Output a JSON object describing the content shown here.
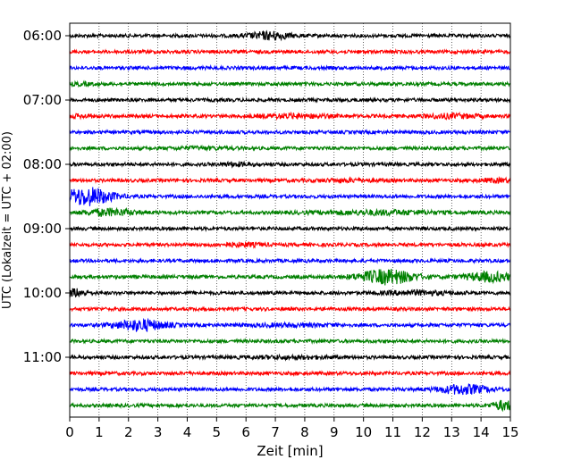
{
  "chart_data": {
    "type": "line",
    "title": "",
    "xlabel": "Zeit  [min]",
    "ylabel": "UTC (Lokalzeit = UTC + 02:00)",
    "xlim": [
      0,
      15
    ],
    "x_ticks": [
      "0",
      "1",
      "2",
      "3",
      "4",
      "5",
      "6",
      "7",
      "8",
      "9",
      "10",
      "11",
      "12",
      "13",
      "14",
      "15"
    ],
    "y_tick_labels": [
      "06:00",
      "07:00",
      "08:00",
      "09:00",
      "10:00",
      "11:00"
    ],
    "grid": "vertical dotted",
    "start_time": "06:00",
    "trace_interval_minutes": 15,
    "color_cycle": [
      "#000000",
      "#ff0000",
      "#0000ff",
      "#008000"
    ],
    "series": [
      {
        "start": "06:00",
        "bursts": [
          [
            6.8,
            0.5,
            3.0
          ]
        ]
      },
      {
        "start": "06:15",
        "bursts": []
      },
      {
        "start": "06:30",
        "bursts": []
      },
      {
        "start": "06:45",
        "bursts": [
          [
            0.4,
            0.3,
            1.5
          ]
        ]
      },
      {
        "start": "07:00",
        "bursts": []
      },
      {
        "start": "07:15",
        "bursts": [
          [
            0.3,
            0.4,
            1.6
          ],
          [
            7.6,
            0.8,
            2.0
          ],
          [
            13.0,
            0.7,
            2.0
          ]
        ]
      },
      {
        "start": "07:30",
        "bursts": []
      },
      {
        "start": "07:45",
        "bursts": [
          [
            4.5,
            0.7,
            1.5
          ]
        ]
      },
      {
        "start": "08:00",
        "bursts": [
          [
            5.6,
            0.4,
            1.8
          ]
        ]
      },
      {
        "start": "08:15",
        "bursts": [
          [
            9.5,
            0.8,
            1.6
          ],
          [
            14.6,
            0.5,
            1.8
          ]
        ]
      },
      {
        "start": "08:30",
        "bursts": [
          [
            0.6,
            0.6,
            6.0
          ]
        ]
      },
      {
        "start": "08:45",
        "bursts": [
          [
            1.4,
            0.6,
            2.8
          ],
          [
            10.5,
            1.5,
            2.0
          ]
        ]
      },
      {
        "start": "09:00",
        "bursts": []
      },
      {
        "start": "09:15",
        "bursts": [
          [
            5.8,
            0.6,
            1.8
          ]
        ]
      },
      {
        "start": "09:30",
        "bursts": []
      },
      {
        "start": "09:45",
        "bursts": [
          [
            10.8,
            0.7,
            5.0
          ],
          [
            14.3,
            0.6,
            3.5
          ]
        ]
      },
      {
        "start": "10:00",
        "bursts": [
          [
            0.2,
            0.3,
            3.0
          ],
          [
            11.8,
            0.8,
            2.0
          ]
        ]
      },
      {
        "start": "10:15",
        "bursts": []
      },
      {
        "start": "10:30",
        "bursts": [
          [
            2.4,
            0.6,
            4.0
          ],
          [
            7.5,
            1.0,
            1.6
          ]
        ]
      },
      {
        "start": "10:45",
        "bursts": []
      },
      {
        "start": "11:00",
        "bursts": [
          [
            7.5,
            1.0,
            1.6
          ]
        ]
      },
      {
        "start": "11:15",
        "bursts": []
      },
      {
        "start": "11:30",
        "bursts": [
          [
            13.4,
            0.6,
            3.5
          ]
        ]
      },
      {
        "start": "11:45",
        "bursts": [
          [
            14.8,
            0.3,
            3.5
          ]
        ]
      }
    ]
  }
}
